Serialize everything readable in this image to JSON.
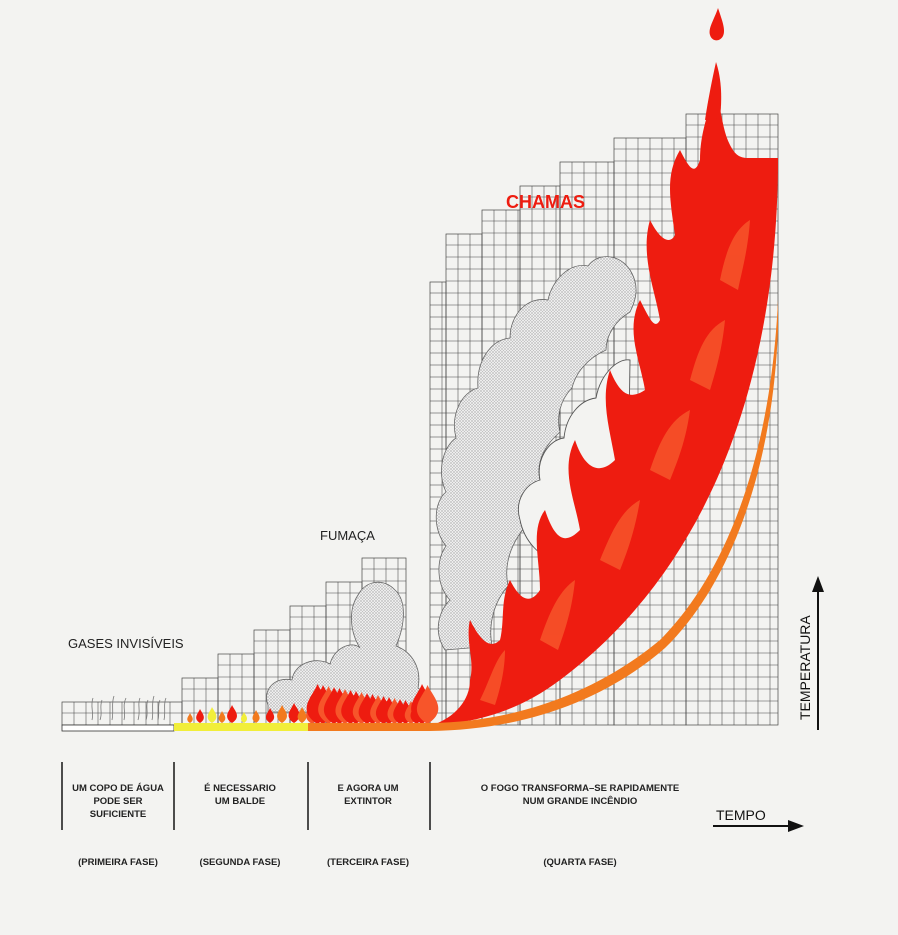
{
  "labels": {
    "gases": "GASES INVISÍVEIS",
    "fumaca": "FUMAÇA",
    "chamas": "CHAMAS",
    "temperatura": "TEMPERATURA",
    "tempo": "TEMPO"
  },
  "phases": [
    {
      "desc": [
        "UM COPO DE ÁGUA",
        "PODE SER",
        "SUFICIENTE"
      ],
      "name": "(PRIMEIRA FASE)"
    },
    {
      "desc": [
        "É NECESSARIO",
        "UM BALDE"
      ],
      "name": "(SEGUNDA FASE)"
    },
    {
      "desc": [
        "E AGORA UM",
        "EXTINTOR"
      ],
      "name": "(TERCEIRA FASE)"
    },
    {
      "desc": [
        "O FOGO TRANSFORMA–SE RAPIDAMENTE",
        "NUM GRANDE INCÊNDIO"
      ],
      "name": "(QUARTA FASE)"
    }
  ],
  "colors": {
    "flame": "#ee1c10",
    "flame_light": "#f7552a",
    "yellow": "#f1ee3a",
    "orange": "#f27a1e",
    "grid": "#444444",
    "smoke": "#c9c9c9"
  }
}
